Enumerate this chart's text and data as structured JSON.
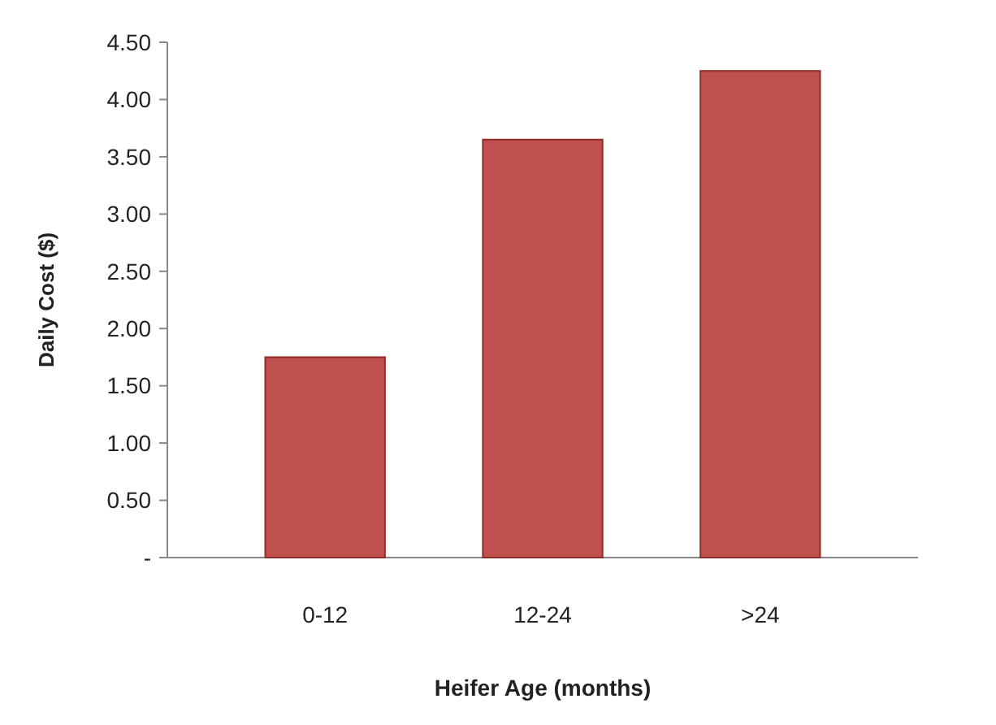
{
  "chart_data": {
    "type": "bar",
    "xlabel": "Heifer Age (months)",
    "ylabel": "Daily Cost ($)",
    "categories": [
      "0-12",
      "12-24",
      ">24"
    ],
    "values": [
      1.75,
      3.65,
      4.25
    ],
    "color": "#c0504d",
    "ylim": [
      0,
      4.5
    ],
    "yticks": [
      {
        "value": 0,
        "label": "-"
      },
      {
        "value": 0.5,
        "label": "0.50"
      },
      {
        "value": 1,
        "label": "1.00"
      },
      {
        "value": 1.5,
        "label": "1.50"
      },
      {
        "value": 2,
        "label": "2.00"
      },
      {
        "value": 2.5,
        "label": "2.50"
      },
      {
        "value": 3,
        "label": "3.00"
      },
      {
        "value": 3.5,
        "label": "3.50"
      },
      {
        "value": 4,
        "label": "4.00"
      },
      {
        "value": 4.5,
        "label": "4.50"
      }
    ]
  }
}
